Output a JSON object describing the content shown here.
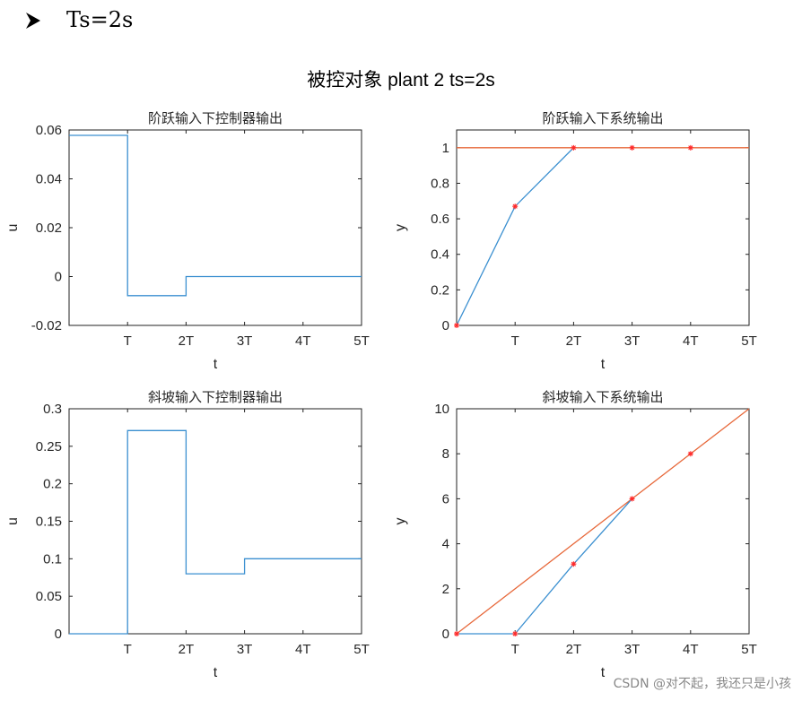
{
  "header": {
    "bullet_icon": "arrowhead-bullet-icon",
    "text": "Ts=2s"
  },
  "figure_title": "被控对象 plant 2  ts=2s",
  "colors": {
    "controller": "#3a8fd0",
    "reference": "#e7683a",
    "marker": "#ff2a2a"
  },
  "watermark": "CSDN @对不起，我还只是小孩",
  "chart_data": [
    {
      "id": "step-u",
      "type": "line",
      "title": "阶跃输入下控制器输出",
      "xlabel": "t",
      "ylabel": "u",
      "xlim": [
        0,
        5
      ],
      "ylim": [
        -0.02,
        0.06
      ],
      "xticks": [
        1,
        2,
        3,
        4,
        5
      ],
      "xticklabels": [
        "T",
        "2T",
        "3T",
        "4T",
        "5T"
      ],
      "yticks": [
        -0.02,
        0,
        0.02,
        0.04,
        0.06
      ],
      "yticklabels": [
        "-0.02",
        "0",
        "0.02",
        "0.04",
        "0.06"
      ],
      "series": [
        {
          "style": "stairs",
          "color": "#3a8fd0",
          "x": [
            0,
            1,
            1,
            2,
            2,
            5
          ],
          "y": [
            0.0578,
            0.0578,
            -0.0078,
            -0.0078,
            0,
            0
          ]
        }
      ]
    },
    {
      "id": "step-y",
      "type": "line",
      "title": "阶跃输入下系统输出",
      "xlabel": "t",
      "ylabel": "y",
      "xlim": [
        0,
        5
      ],
      "ylim": [
        0,
        1.1
      ],
      "xticks": [
        1,
        2,
        3,
        4,
        5
      ],
      "xticklabels": [
        "T",
        "2T",
        "3T",
        "4T",
        "5T"
      ],
      "yticks": [
        0,
        0.2,
        0.4,
        0.6,
        0.8,
        1
      ],
      "yticklabels": [
        "0",
        "0.2",
        "0.4",
        "0.6",
        "0.8",
        "1"
      ],
      "series": [
        {
          "style": "line",
          "color": "#e7683a",
          "x": [
            0,
            5
          ],
          "y": [
            1,
            1
          ]
        },
        {
          "style": "line",
          "color": "#3a8fd0",
          "x": [
            0,
            1,
            2
          ],
          "y": [
            0,
            0.67,
            1
          ]
        }
      ],
      "markers": {
        "color": "#ff2a2a",
        "x": [
          0,
          1,
          2,
          3,
          4
        ],
        "y": [
          0,
          0.67,
          1,
          1,
          1
        ]
      }
    },
    {
      "id": "ramp-u",
      "type": "line",
      "title": "斜坡输入下控制器输出",
      "xlabel": "t",
      "ylabel": "u",
      "xlim": [
        0,
        5
      ],
      "ylim": [
        0,
        0.3
      ],
      "xticks": [
        1,
        2,
        3,
        4,
        5
      ],
      "xticklabels": [
        "T",
        "2T",
        "3T",
        "4T",
        "5T"
      ],
      "yticks": [
        0,
        0.05,
        0.1,
        0.15,
        0.2,
        0.25,
        0.3
      ],
      "yticklabels": [
        "0",
        "0.05",
        "0.1",
        "0.15",
        "0.2",
        "0.25",
        "0.3"
      ],
      "series": [
        {
          "style": "stairs",
          "color": "#3a8fd0",
          "x": [
            0,
            1,
            1,
            2,
            2,
            3,
            3,
            5
          ],
          "y": [
            0,
            0,
            0.271,
            0.271,
            0.08,
            0.08,
            0.1,
            0.1
          ]
        }
      ]
    },
    {
      "id": "ramp-y",
      "type": "line",
      "title": "斜坡输入下系统输出",
      "xlabel": "t",
      "ylabel": "y",
      "xlim": [
        0,
        5
      ],
      "ylim": [
        0,
        10
      ],
      "xticks": [
        1,
        2,
        3,
        4,
        5
      ],
      "xticklabels": [
        "T",
        "2T",
        "3T",
        "4T",
        "5T"
      ],
      "yticks": [
        0,
        2,
        4,
        6,
        8,
        10
      ],
      "yticklabels": [
        "0",
        "2",
        "4",
        "6",
        "8",
        "10"
      ],
      "series": [
        {
          "style": "line",
          "color": "#e7683a",
          "x": [
            0,
            5
          ],
          "y": [
            0,
            10
          ]
        },
        {
          "style": "line",
          "color": "#3a8fd0",
          "x": [
            0,
            1,
            2,
            3
          ],
          "y": [
            0,
            0,
            3.1,
            6
          ]
        }
      ],
      "markers": {
        "color": "#ff2a2a",
        "x": [
          0,
          1,
          2,
          3,
          4
        ],
        "y": [
          0,
          0,
          3.1,
          6,
          8
        ]
      }
    }
  ]
}
